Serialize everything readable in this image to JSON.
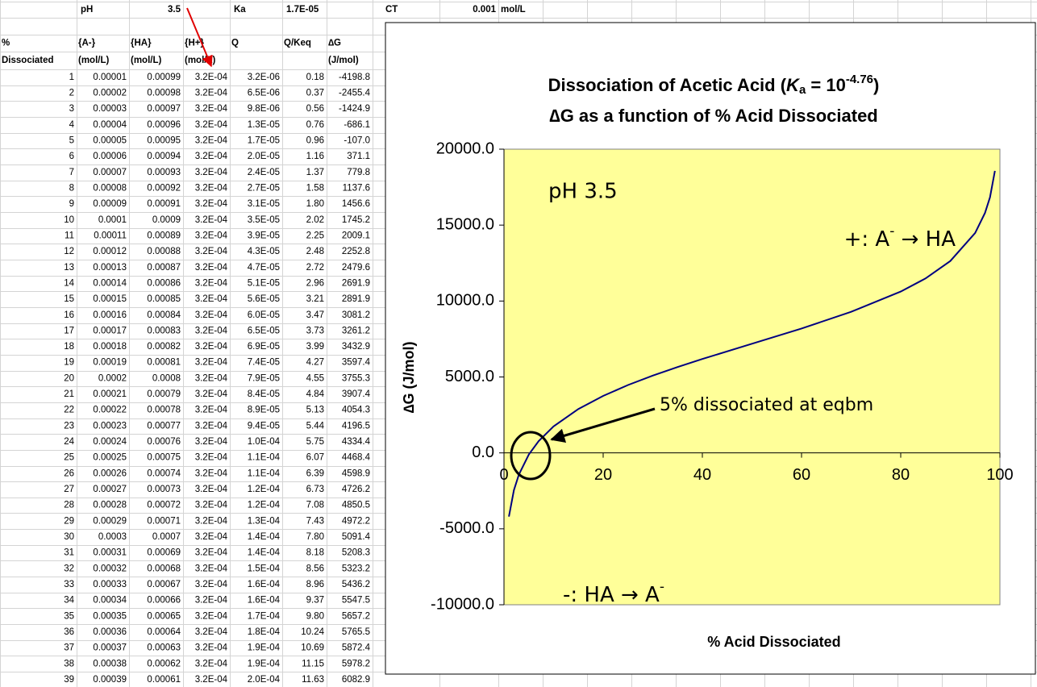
{
  "sheet": {
    "top_row": {
      "ph_label": "pH",
      "ph_value": "3.5",
      "ka_label": "Ka",
      "ka_value": "1.7E-05",
      "ct_label": "CT",
      "ct_value": "0.001",
      "ct_unit": "mol/L"
    },
    "header_rows": [
      [
        "%",
        "{A-}",
        "{HA}",
        "{H+}",
        "Q",
        "Q/Keq",
        "∆G"
      ],
      [
        "Dissociated",
        "(mol/L)",
        "(mol/L)",
        "(mol/L)",
        null,
        null,
        "(J/mol)"
      ]
    ],
    "rows": [
      [
        "1",
        "0.00001",
        "0.00099",
        "3.2E-04",
        "3.2E-06",
        "0.18",
        "-4198.8"
      ],
      [
        "2",
        "0.00002",
        "0.00098",
        "3.2E-04",
        "6.5E-06",
        "0.37",
        "-2455.4"
      ],
      [
        "3",
        "0.00003",
        "0.00097",
        "3.2E-04",
        "9.8E-06",
        "0.56",
        "-1424.9"
      ],
      [
        "4",
        "0.00004",
        "0.00096",
        "3.2E-04",
        "1.3E-05",
        "0.76",
        "-686.1"
      ],
      [
        "5",
        "0.00005",
        "0.00095",
        "3.2E-04",
        "1.7E-05",
        "0.96",
        "-107.0"
      ],
      [
        "6",
        "0.00006",
        "0.00094",
        "3.2E-04",
        "2.0E-05",
        "1.16",
        "371.1"
      ],
      [
        "7",
        "0.00007",
        "0.00093",
        "3.2E-04",
        "2.4E-05",
        "1.37",
        "779.8"
      ],
      [
        "8",
        "0.00008",
        "0.00092",
        "3.2E-04",
        "2.7E-05",
        "1.58",
        "1137.6"
      ],
      [
        "9",
        "0.00009",
        "0.00091",
        "3.2E-04",
        "3.1E-05",
        "1.80",
        "1456.6"
      ],
      [
        "10",
        "0.0001",
        "0.0009",
        "3.2E-04",
        "3.5E-05",
        "2.02",
        "1745.2"
      ],
      [
        "11",
        "0.00011",
        "0.00089",
        "3.2E-04",
        "3.9E-05",
        "2.25",
        "2009.1"
      ],
      [
        "12",
        "0.00012",
        "0.00088",
        "3.2E-04",
        "4.3E-05",
        "2.48",
        "2252.8"
      ],
      [
        "13",
        "0.00013",
        "0.00087",
        "3.2E-04",
        "4.7E-05",
        "2.72",
        "2479.6"
      ],
      [
        "14",
        "0.00014",
        "0.00086",
        "3.2E-04",
        "5.1E-05",
        "2.96",
        "2691.9"
      ],
      [
        "15",
        "0.00015",
        "0.00085",
        "3.2E-04",
        "5.6E-05",
        "3.21",
        "2891.9"
      ],
      [
        "16",
        "0.00016",
        "0.00084",
        "3.2E-04",
        "6.0E-05",
        "3.47",
        "3081.2"
      ],
      [
        "17",
        "0.00017",
        "0.00083",
        "3.2E-04",
        "6.5E-05",
        "3.73",
        "3261.2"
      ],
      [
        "18",
        "0.00018",
        "0.00082",
        "3.2E-04",
        "6.9E-05",
        "3.99",
        "3432.9"
      ],
      [
        "19",
        "0.00019",
        "0.00081",
        "3.2E-04",
        "7.4E-05",
        "4.27",
        "3597.4"
      ],
      [
        "20",
        "0.0002",
        "0.0008",
        "3.2E-04",
        "7.9E-05",
        "4.55",
        "3755.3"
      ],
      [
        "21",
        "0.00021",
        "0.00079",
        "3.2E-04",
        "8.4E-05",
        "4.84",
        "3907.4"
      ],
      [
        "22",
        "0.00022",
        "0.00078",
        "3.2E-04",
        "8.9E-05",
        "5.13",
        "4054.3"
      ],
      [
        "23",
        "0.00023",
        "0.00077",
        "3.2E-04",
        "9.4E-05",
        "5.44",
        "4196.5"
      ],
      [
        "24",
        "0.00024",
        "0.00076",
        "3.2E-04",
        "1.0E-04",
        "5.75",
        "4334.4"
      ],
      [
        "25",
        "0.00025",
        "0.00075",
        "3.2E-04",
        "1.1E-04",
        "6.07",
        "4468.4"
      ],
      [
        "26",
        "0.00026",
        "0.00074",
        "3.2E-04",
        "1.1E-04",
        "6.39",
        "4598.9"
      ],
      [
        "27",
        "0.00027",
        "0.00073",
        "3.2E-04",
        "1.2E-04",
        "6.73",
        "4726.2"
      ],
      [
        "28",
        "0.00028",
        "0.00072",
        "3.2E-04",
        "1.2E-04",
        "7.08",
        "4850.5"
      ],
      [
        "29",
        "0.00029",
        "0.00071",
        "3.2E-04",
        "1.3E-04",
        "7.43",
        "4972.2"
      ],
      [
        "30",
        "0.0003",
        "0.0007",
        "3.2E-04",
        "1.4E-04",
        "7.80",
        "5091.4"
      ],
      [
        "31",
        "0.00031",
        "0.00069",
        "3.2E-04",
        "1.4E-04",
        "8.18",
        "5208.3"
      ],
      [
        "32",
        "0.00032",
        "0.00068",
        "3.2E-04",
        "1.5E-04",
        "8.56",
        "5323.2"
      ],
      [
        "33",
        "0.00033",
        "0.00067",
        "3.2E-04",
        "1.6E-04",
        "8.96",
        "5436.2"
      ],
      [
        "34",
        "0.00034",
        "0.00066",
        "3.2E-04",
        "1.6E-04",
        "9.37",
        "5547.5"
      ],
      [
        "35",
        "0.00035",
        "0.00065",
        "3.2E-04",
        "1.7E-04",
        "9.80",
        "5657.2"
      ],
      [
        "36",
        "0.00036",
        "0.00064",
        "3.2E-04",
        "1.8E-04",
        "10.24",
        "5765.5"
      ],
      [
        "37",
        "0.00037",
        "0.00063",
        "3.2E-04",
        "1.9E-04",
        "10.69",
        "5872.4"
      ],
      [
        "38",
        "0.00038",
        "0.00062",
        "3.2E-04",
        "1.9E-04",
        "11.15",
        "5978.2"
      ],
      [
        "39",
        "0.00039",
        "0.00061",
        "3.2E-04",
        "2.0E-04",
        "11.63",
        "6082.9"
      ]
    ]
  },
  "chart_data": {
    "type": "line",
    "title_line1": [
      "Dissociation of Acetic Acid (",
      "K",
      "a",
      " = 10",
      "-4.76",
      ")"
    ],
    "title_line2": "∆G as a function of % Acid Dissociated",
    "x_label": "% Acid Dissociated",
    "y_label": "∆G (J/mol)",
    "annotations": {
      "ph": "pH 3.5",
      "plus": [
        "+: A",
        "-",
        " → HA"
      ],
      "minus": [
        "-: HA → A",
        "-"
      ],
      "eqbm": "5% dissociated at eqbm"
    },
    "x": [
      1,
      2,
      3,
      5,
      7,
      10,
      15,
      20,
      25,
      30,
      35,
      40,
      50,
      60,
      70,
      80,
      85,
      90,
      95,
      97,
      98,
      99
    ],
    "series": [
      {
        "name": "∆G",
        "color": "#000080",
        "values": [
          -4197,
          -2455,
          -1425,
          -107,
          780,
          1745,
          2891,
          3754,
          4467,
          5090,
          5654,
          6184,
          7188,
          8193,
          9288,
          10623,
          11487,
          12633,
          14483,
          15801,
          16830,
          18572
        ]
      }
    ],
    "xlim": [
      0,
      100
    ],
    "xticks": [
      0,
      20,
      40,
      60,
      80,
      100
    ],
    "ylim": [
      -10000,
      20000
    ],
    "yticks": [
      {
        "value": -10000,
        "label": "-10000.0"
      },
      {
        "value": -5000,
        "label": "-5000.0"
      },
      {
        "value": 0,
        "label": "0.0"
      },
      {
        "value": 5000,
        "label": "5000.0"
      },
      {
        "value": 10000,
        "label": "10000.0"
      },
      {
        "value": 15000,
        "label": "15000.0"
      },
      {
        "value": 20000,
        "label": "20000.0"
      }
    ],
    "plot_color": "#ffff99"
  }
}
